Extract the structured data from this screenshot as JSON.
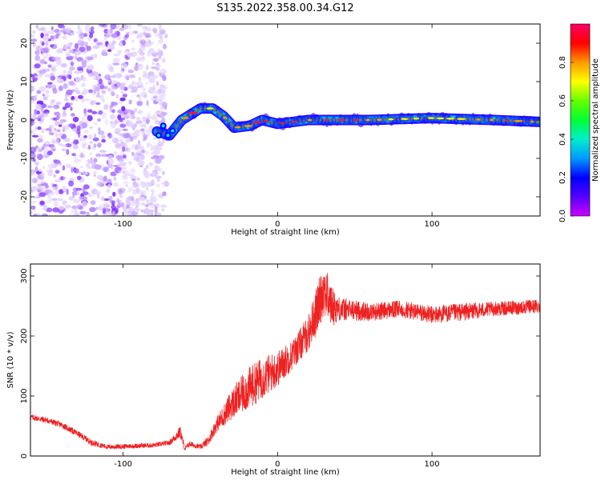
{
  "title": "S135.2022.358.00.34.G12",
  "colors": {
    "snr_line": "#ee2222",
    "colormap": [
      "#cc00ff",
      "#5500ff",
      "#0000ff",
      "#0099ff",
      "#00eecc",
      "#00ff33",
      "#66ff00",
      "#ffff00",
      "#ff9900",
      "#ff0000",
      "#ff0066"
    ]
  },
  "chart_data": [
    {
      "type": "heatmap",
      "name": "spectrogram",
      "xlabel": "Height of straight line (km)",
      "ylabel": "Frequency (Hz)",
      "xlim": [
        -160,
        170
      ],
      "ylim": [
        -25,
        25
      ],
      "xticks": [
        "-100",
        "0",
        "100"
      ],
      "yticks": [
        "-20",
        "-10",
        "0",
        "10",
        "20"
      ],
      "colorbar": {
        "label": "Normalized spectral amplitude",
        "range": [
          0.0,
          1.0
        ],
        "ticks": [
          "0.0",
          "0.2",
          "0.4",
          "0.6",
          "0.8"
        ]
      },
      "features": {
        "noise_region_x": [
          -160,
          -78
        ],
        "signal_track": [
          {
            "x": -78,
            "y": -3
          },
          {
            "x": -70,
            "y": -4
          },
          {
            "x": -62,
            "y": 0
          },
          {
            "x": -50,
            "y": 3
          },
          {
            "x": -42,
            "y": 3
          },
          {
            "x": -35,
            "y": 1
          },
          {
            "x": -28,
            "y": -2
          },
          {
            "x": -18,
            "y": -1.5
          },
          {
            "x": -10,
            "y": 0
          },
          {
            "x": 0,
            "y": -1
          },
          {
            "x": 20,
            "y": 0
          },
          {
            "x": 60,
            "y": 0
          },
          {
            "x": 100,
            "y": 0.5
          },
          {
            "x": 140,
            "y": 0
          },
          {
            "x": 170,
            "y": -0.5
          }
        ]
      },
      "grid": false
    },
    {
      "type": "line",
      "name": "snr",
      "xlabel": "Height of straight line (km)",
      "ylabel": "SNR (10 * v/v)",
      "xlim": [
        -160,
        170
      ],
      "ylim": [
        0,
        320
      ],
      "xticks": [
        "-100",
        "0",
        "100"
      ],
      "yticks": [
        "0",
        "100",
        "200",
        "300"
      ],
      "series": [
        {
          "x": [
            -160,
            -150,
            -140,
            -130,
            -120,
            -110,
            -100,
            -90,
            -80,
            -70,
            -63,
            -60,
            -57,
            -50,
            -45,
            -40,
            -30,
            -20,
            -10,
            0,
            10,
            20,
            25,
            30,
            35,
            40,
            60,
            80,
            100,
            120,
            140,
            160,
            170
          ],
          "y": [
            65,
            60,
            52,
            38,
            22,
            15,
            16,
            17,
            18,
            22,
            40,
            12,
            20,
            15,
            25,
            50,
            85,
            110,
            130,
            145,
            170,
            205,
            240,
            280,
            250,
            245,
            240,
            245,
            235,
            240,
            245,
            248,
            250
          ],
          "noise_amplitude": [
            5,
            5,
            5,
            5,
            5,
            4,
            4,
            4,
            4,
            4,
            10,
            4,
            5,
            4,
            8,
            12,
            25,
            35,
            35,
            30,
            25,
            30,
            40,
            45,
            35,
            20,
            15,
            15,
            15,
            15,
            12,
            12,
            12
          ]
        }
      ],
      "grid": false
    }
  ]
}
